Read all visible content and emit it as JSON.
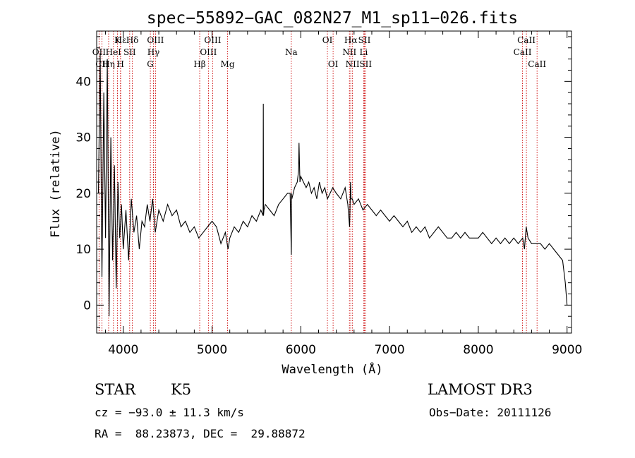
{
  "chart_data": {
    "type": "line",
    "title": "spec−55892−GAC_082N27_M1_sp11−026.fits",
    "xlabel": "Wavelength (Å)",
    "ylabel": "Flux (relative)",
    "xlim": [
      3700,
      9050
    ],
    "ylim": [
      -5,
      49
    ],
    "xticks": [
      4000,
      5000,
      6000,
      7000,
      8000,
      9000
    ],
    "yticks": [
      0,
      10,
      20,
      30,
      40
    ],
    "xtick_labels": [
      "4000",
      "5000",
      "6000",
      "7000",
      "8000",
      "9000"
    ],
    "ytick_labels": [
      "0",
      "10",
      "20",
      "30",
      "40"
    ],
    "series": [
      {
        "name": "flux",
        "x": [
          3720,
          3740,
          3760,
          3780,
          3800,
          3820,
          3840,
          3860,
          3880,
          3900,
          3920,
          3940,
          3960,
          3980,
          4000,
          4030,
          4060,
          4090,
          4120,
          4150,
          4180,
          4210,
          4240,
          4270,
          4300,
          4330,
          4360,
          4400,
          4450,
          4500,
          4550,
          4600,
          4650,
          4700,
          4750,
          4800,
          4850,
          4900,
          4950,
          5000,
          5050,
          5100,
          5150,
          5180,
          5200,
          5250,
          5300,
          5350,
          5400,
          5450,
          5500,
          5550,
          5575,
          5578,
          5580,
          5585,
          5600,
          5650,
          5700,
          5750,
          5800,
          5850,
          5880,
          5893,
          5896,
          5900,
          5930,
          5960,
          5975,
          5980,
          5990,
          6000,
          6030,
          6060,
          6090,
          6120,
          6150,
          6180,
          6210,
          6240,
          6270,
          6300,
          6330,
          6360,
          6400,
          6450,
          6500,
          6530,
          6550,
          6560,
          6563,
          6566,
          6580,
          6600,
          6650,
          6700,
          6750,
          6800,
          6850,
          6900,
          6950,
          7000,
          7050,
          7100,
          7150,
          7200,
          7250,
          7300,
          7350,
          7400,
          7450,
          7500,
          7550,
          7600,
          7650,
          7700,
          7750,
          7800,
          7850,
          7900,
          7950,
          8000,
          8050,
          8100,
          8150,
          8200,
          8250,
          8300,
          8350,
          8400,
          8450,
          8500,
          8520,
          8540,
          8560,
          8600,
          8650,
          8700,
          8750,
          8800,
          8850,
          8900,
          8950,
          8980,
          9000
        ],
        "values": [
          20,
          45,
          5,
          38,
          12,
          44,
          -2,
          30,
          8,
          25,
          3,
          22,
          12,
          18,
          10,
          17,
          8,
          19,
          13,
          16,
          10,
          15,
          14,
          18,
          15,
          19,
          13,
          17,
          15,
          18,
          16,
          17,
          14,
          15,
          13,
          14,
          12,
          13,
          14,
          15,
          14,
          11,
          13,
          10,
          12,
          14,
          13,
          15,
          14,
          16,
          15,
          17,
          16,
          36,
          16,
          17,
          18,
          17,
          16,
          18,
          19,
          20,
          20,
          9,
          20,
          19,
          21,
          22,
          24,
          29,
          22,
          23,
          22,
          21,
          22,
          20,
          21,
          19,
          22,
          20,
          21,
          19,
          20,
          21,
          20,
          19,
          21,
          18,
          14,
          22,
          21,
          19,
          19,
          18,
          19,
          17,
          18,
          17,
          16,
          17,
          16,
          15,
          16,
          15,
          14,
          15,
          13,
          14,
          13,
          14,
          12,
          13,
          14,
          13,
          12,
          12,
          13,
          12,
          13,
          12,
          12,
          12,
          13,
          12,
          11,
          12,
          11,
          12,
          11,
          12,
          11,
          12,
          10,
          14,
          12,
          11,
          11,
          11,
          10,
          11,
          10,
          9,
          8,
          4,
          0
        ]
      }
    ],
    "spectral_lines": [
      {
        "label": "Hε",
        "wavelength": 3970,
        "level": 0
      },
      {
        "label": "K",
        "wavelength": 3934,
        "level": 0
      },
      {
        "label": "Hδ",
        "wavelength": 4102,
        "level": 0
      },
      {
        "label": "OIII",
        "wavelength": 4363,
        "level": 0
      },
      {
        "label": "OIII",
        "wavelength": 5007,
        "level": 0
      },
      {
        "label": "OI",
        "wavelength": 6300,
        "level": 0
      },
      {
        "label": "Hα",
        "wavelength": 6563,
        "level": 0
      },
      {
        "label": "SII",
        "wavelength": 6717,
        "level": 0
      },
      {
        "label": "CaII",
        "wavelength": 8542,
        "level": 0
      },
      {
        "label": "OII",
        "wavelength": 3727,
        "level": 1
      },
      {
        "label": "HeI",
        "wavelength": 3889,
        "level": 1
      },
      {
        "label": "SII",
        "wavelength": 4072,
        "level": 1
      },
      {
        "label": "Hγ",
        "wavelength": 4340,
        "level": 1
      },
      {
        "label": "OIII",
        "wavelength": 4959,
        "level": 1
      },
      {
        "label": "Na",
        "wavelength": 5893,
        "level": 1
      },
      {
        "label": "NII",
        "wavelength": 6548,
        "level": 1
      },
      {
        "label": "Li",
        "wavelength": 6708,
        "level": 1
      },
      {
        "label": "CaII",
        "wavelength": 8498,
        "level": 1
      },
      {
        "label": "CII",
        "wavelength": 3760,
        "level": 2
      },
      {
        "label": "Hη",
        "wavelength": 3835,
        "level": 2
      },
      {
        "label": "H",
        "wavelength": 3968,
        "level": 2
      },
      {
        "label": "G",
        "wavelength": 4305,
        "level": 2
      },
      {
        "label": "Hβ",
        "wavelength": 4861,
        "level": 2
      },
      {
        "label": "Mg",
        "wavelength": 5175,
        "level": 2
      },
      {
        "label": "OI",
        "wavelength": 6364,
        "level": 2
      },
      {
        "label": "NII",
        "wavelength": 6583,
        "level": 2
      },
      {
        "label": "SII",
        "wavelength": 6731,
        "level": 2
      },
      {
        "label": "CaII",
        "wavelength": 8662,
        "level": 2
      }
    ],
    "line_color": "#cc0000"
  },
  "info": {
    "object_class": "STAR",
    "subclass": "K5",
    "survey": "LAMOST DR3",
    "cz": "cz = −93.0 ± 11.3 km/s",
    "obs_date": "Obs−Date: 20111126",
    "coords": "RA =  88.23873, DEC =  29.88872"
  }
}
